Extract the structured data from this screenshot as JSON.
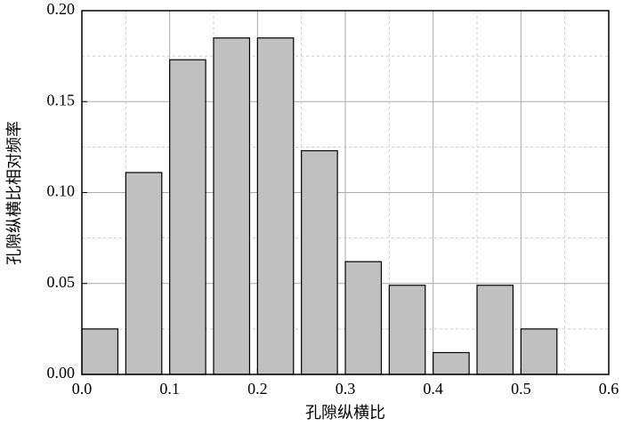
{
  "chart_data": {
    "type": "histogram",
    "xlabel": "孔隙纵横比",
    "ylabel": "孔隙纵横比相对频率",
    "bins": [
      0,
      0.05,
      0.1,
      0.15,
      0.2,
      0.25,
      0.3,
      0.35,
      0.4,
      0.45,
      0.5,
      0.55
    ],
    "values": [
      0.025,
      0.111,
      0.173,
      0.185,
      0.185,
      0.123,
      0.062,
      0.049,
      0.012,
      0.049,
      0.025
    ],
    "color": "#c0c0c0",
    "xlim": [
      0,
      0.6
    ],
    "xticks": [
      {
        "value": 0,
        "label": "0.0"
      },
      0.1,
      0.2,
      0.3,
      0.4,
      0.5,
      0.6
    ],
    "ylim": [
      0,
      0.2
    ],
    "yticks": [
      {
        "value": 0,
        "label": "0.00"
      },
      0.05,
      {
        "value": 0.1,
        "label": "0.10"
      },
      0.15,
      {
        "value": 0.2,
        "label": "0.20"
      }
    ],
    "grid": true
  }
}
